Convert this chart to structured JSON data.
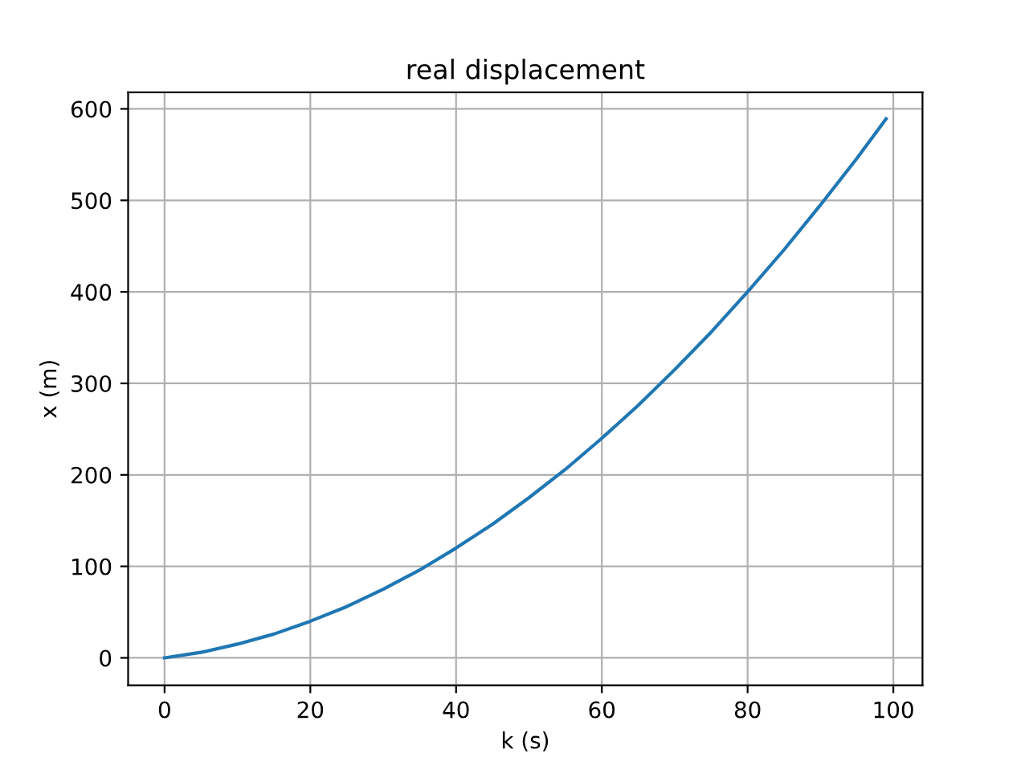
{
  "chart_data": {
    "type": "line",
    "title": "real displacement",
    "xlabel": "k (s)",
    "ylabel": "x (m)",
    "x": [
      0,
      5,
      10,
      15,
      20,
      25,
      30,
      35,
      40,
      45,
      50,
      55,
      60,
      65,
      70,
      75,
      80,
      85,
      90,
      95,
      99
    ],
    "series": [
      {
        "color": "#1f77b4",
        "values": [
          0,
          6,
          15,
          26,
          40,
          56,
          75,
          96,
          120,
          146,
          175,
          206,
          240,
          276,
          315,
          356,
          400,
          446,
          495,
          546,
          589
        ]
      }
    ],
    "xlim": [
      -5,
      104
    ],
    "ylim": [
      -30,
      618
    ],
    "xticks": [
      0,
      20,
      40,
      60,
      80,
      100
    ],
    "yticks": [
      0,
      100,
      200,
      300,
      400,
      500,
      600
    ],
    "grid": true,
    "marker": "none",
    "line_style": "solid"
  }
}
